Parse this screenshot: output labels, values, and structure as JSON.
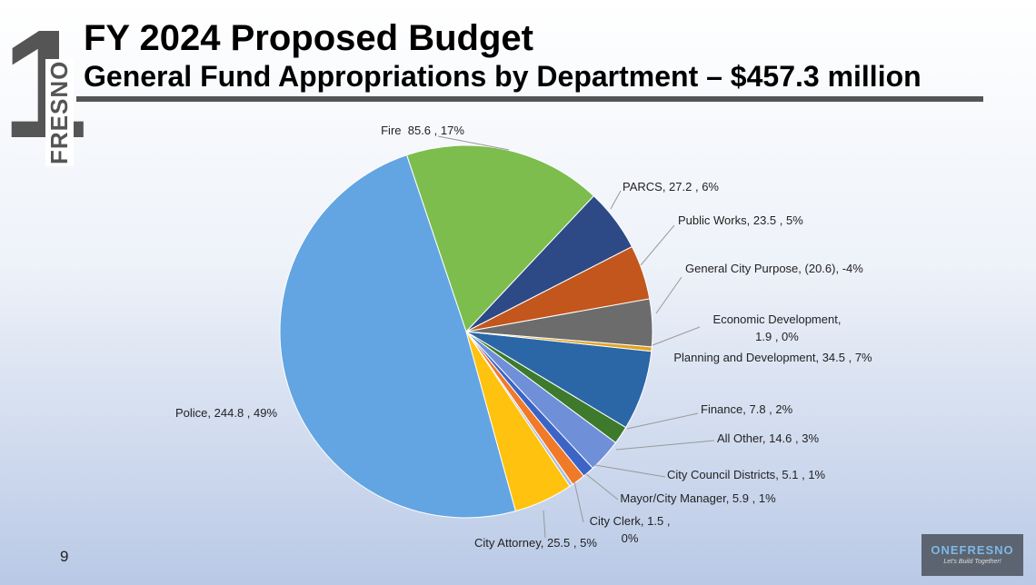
{
  "logo": {
    "number": "1",
    "text": "FRESNO"
  },
  "chart_data": {
    "type": "pie",
    "title": "FY 2024 Proposed Budget",
    "subtitle": "General Fund Appropriations by Department – $457.3 million",
    "categories": [
      "Fire",
      "PARCS",
      "Public Works",
      "General City Purpose",
      "Economic Development",
      "Planning and Development",
      "Finance",
      "All Other",
      "City Council Districts",
      "Mayor/City Manager",
      "City Clerk",
      "City Attorney",
      "Police"
    ],
    "values": [
      85.6,
      27.2,
      23.5,
      -20.6,
      1.9,
      34.5,
      7.8,
      14.6,
      5.1,
      5.9,
      1.5,
      25.5,
      244.8
    ],
    "value_labels": [
      "  85.6 , 17%",
      ", 27.2 , 6%",
      ", 23.5 , 5%",
      ", (20.6), -4%",
      ", 1.9 , 0%",
      ", 34.5 , 7%",
      ", 7.8 , 2%",
      ", 14.6 , 3%",
      ", 5.1 , 1%",
      ", 5.9 , 1%",
      ", 1.5 , 0%",
      ", 25.5 , 5%",
      ", 244.8 , 49%"
    ],
    "colors": [
      "#7cbd4e",
      "#2d4a86",
      "#c2561c",
      "#6c6c6c",
      "#e3a322",
      "#2b67a6",
      "#3d7a2c",
      "#6f90d8",
      "#3c64c6",
      "#f07a28",
      "#a9bfe6",
      "#ffc20e",
      "#63a5e2"
    ]
  },
  "page_number": "9",
  "footer_logo": {
    "text": "ONEFRESNO",
    "tagline": "Let's Build Together!"
  }
}
